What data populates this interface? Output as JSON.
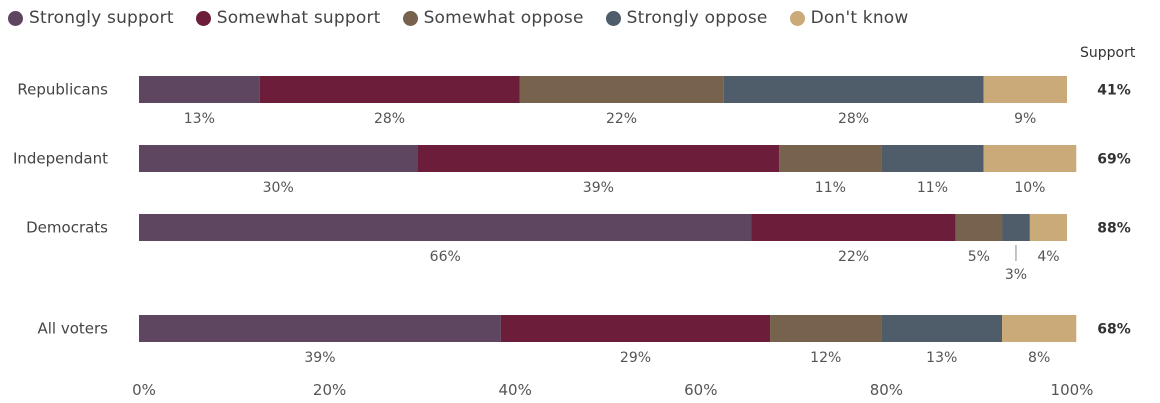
{
  "support_header": "Support",
  "chart_data": {
    "type": "bar",
    "orientation": "horizontal",
    "stacked": true,
    "categories": [
      "Republicans",
      "Independant",
      "Democrats",
      "All voters"
    ],
    "series": [
      {
        "name": "Strongly support",
        "color": "#5e4560",
        "values": [
          13,
          30,
          66,
          39
        ]
      },
      {
        "name": "Somewhat support",
        "color": "#6b1d3a",
        "values": [
          28,
          39,
          22,
          29
        ]
      },
      {
        "name": "Somewhat oppose",
        "color": "#76624d",
        "values": [
          22,
          11,
          5,
          12
        ]
      },
      {
        "name": "Strongly oppose",
        "color": "#4e5d69",
        "values": [
          28,
          11,
          3,
          13
        ]
      },
      {
        "name": "Don't know",
        "color": "#c9aa78",
        "values": [
          9,
          10,
          4,
          8
        ]
      }
    ],
    "support": [
      "41%",
      "69%",
      "88%",
      "68%"
    ],
    "xlim": [
      0,
      100
    ],
    "xticks": [
      "0%",
      "20%",
      "40%",
      "60%",
      "80%",
      "100%"
    ],
    "legend_position": "top",
    "grid": false
  }
}
